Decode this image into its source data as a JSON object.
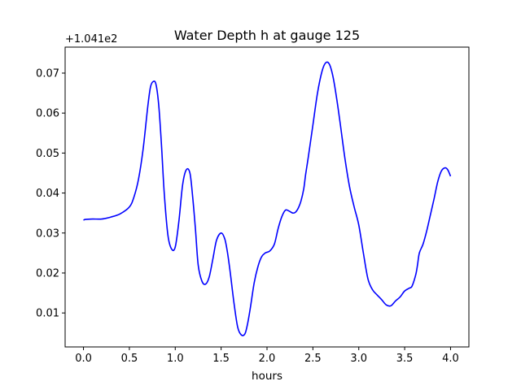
{
  "chart_data": {
    "type": "line",
    "title": "Water Depth h at gauge 125",
    "xlabel": "hours",
    "ylabel": "",
    "y_offset_label": "+1.041e2",
    "xlim": [
      -0.2,
      4.2
    ],
    "ylim": [
      0.0015,
      0.0765
    ],
    "x_ticks": [
      0.0,
      0.5,
      1.0,
      1.5,
      2.0,
      2.5,
      3.0,
      3.5,
      4.0
    ],
    "x_tick_labels": [
      "0.0",
      "0.5",
      "1.0",
      "1.5",
      "2.0",
      "2.5",
      "3.0",
      "3.5",
      "4.0"
    ],
    "y_ticks": [
      0.01,
      0.02,
      0.03,
      0.04,
      0.05,
      0.06,
      0.07
    ],
    "y_tick_labels": [
      "0.01",
      "0.02",
      "0.03",
      "0.04",
      "0.05",
      "0.06",
      "0.07"
    ],
    "grid": false,
    "series": [
      {
        "color": "#0000ff",
        "x": [
          0.0,
          0.02,
          0.1,
          0.2,
          0.3,
          0.4,
          0.5,
          0.55,
          0.6,
          0.65,
          0.7,
          0.73,
          0.76,
          0.79,
          0.82,
          0.85,
          0.88,
          0.92,
          0.96,
          1.0,
          1.04,
          1.08,
          1.12,
          1.16,
          1.19,
          1.22,
          1.25,
          1.29,
          1.33,
          1.37,
          1.41,
          1.45,
          1.5,
          1.54,
          1.57,
          1.6,
          1.64,
          1.68,
          1.72,
          1.76,
          1.79,
          1.82,
          1.86,
          1.9,
          1.94,
          1.98,
          2.03,
          2.08,
          2.12,
          2.16,
          2.2,
          2.24,
          2.28,
          2.31,
          2.34,
          2.37,
          2.4,
          2.42,
          2.45,
          2.5,
          2.55,
          2.6,
          2.64,
          2.68,
          2.72,
          2.76,
          2.8,
          2.85,
          2.9,
          2.95,
          3.0,
          3.05,
          3.1,
          3.15,
          3.2,
          3.25,
          3.3,
          3.35,
          3.4,
          3.45,
          3.5,
          3.55,
          3.58,
          3.62,
          3.64,
          3.66,
          3.7,
          3.74,
          3.78,
          3.82,
          3.86,
          3.9,
          3.94,
          3.97,
          4.0
        ],
        "y": [
          0.0332,
          0.0334,
          0.0335,
          0.0335,
          0.034,
          0.0348,
          0.0365,
          0.039,
          0.0435,
          0.051,
          0.0615,
          0.0665,
          0.0679,
          0.0672,
          0.062,
          0.052,
          0.04,
          0.0295,
          0.026,
          0.0265,
          0.033,
          0.042,
          0.0458,
          0.045,
          0.039,
          0.031,
          0.022,
          0.018,
          0.0172,
          0.019,
          0.0235,
          0.0282,
          0.03,
          0.0285,
          0.025,
          0.02,
          0.0125,
          0.0065,
          0.0045,
          0.0048,
          0.0075,
          0.0115,
          0.0175,
          0.0215,
          0.024,
          0.025,
          0.0255,
          0.0272,
          0.031,
          0.034,
          0.0357,
          0.0355,
          0.035,
          0.0352,
          0.0362,
          0.038,
          0.041,
          0.0445,
          0.049,
          0.057,
          0.065,
          0.0705,
          0.0726,
          0.0722,
          0.069,
          0.0635,
          0.057,
          0.0485,
          0.0415,
          0.0365,
          0.032,
          0.025,
          0.0185,
          0.0158,
          0.0145,
          0.0133,
          0.012,
          0.0118,
          0.013,
          0.014,
          0.0155,
          0.0162,
          0.0167,
          0.0195,
          0.022,
          0.025,
          0.0272,
          0.0305,
          0.0345,
          0.0385,
          0.0428,
          0.0455,
          0.0463,
          0.0458,
          0.0442
        ]
      }
    ]
  }
}
